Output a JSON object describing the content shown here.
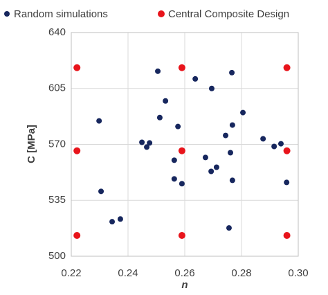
{
  "chart_data": {
    "type": "scatter",
    "xlabel": "n",
    "ylabel": "C [MPa]",
    "xlim": [
      0.22,
      0.3
    ],
    "ylim": [
      500,
      640
    ],
    "xticks": [
      0.22,
      0.24,
      0.26,
      0.28,
      {
        "value": 0.3,
        "label": "0.30"
      }
    ],
    "yticks": [
      500,
      535,
      570,
      605,
      640
    ],
    "grid": true,
    "legend": "top",
    "series": [
      {
        "name": "Random simulations",
        "color": "#17275e",
        "x": [
          0.2505,
          0.2637,
          0.2695,
          0.2766,
          0.2532,
          0.2298,
          0.2512,
          0.2805,
          0.2576,
          0.2768,
          0.2744,
          0.2876,
          0.2449,
          0.2476,
          0.2466,
          0.2915,
          0.2939,
          0.2761,
          0.2563,
          0.2673,
          0.2712,
          0.2693,
          0.2563,
          0.259,
          0.2768,
          0.2959,
          0.2305,
          0.2373,
          0.2344,
          0.2756
        ],
        "values": [
          615.8,
          611.0,
          605.0,
          614.9,
          597.2,
          584.7,
          586.8,
          589.9,
          581.2,
          582.1,
          575.6,
          573.5,
          571.3,
          570.9,
          568.3,
          568.7,
          570.4,
          564.8,
          560.1,
          561.8,
          555.7,
          553.1,
          548.4,
          545.4,
          547.5,
          546.2,
          540.6,
          523.3,
          521.6,
          517.7
        ]
      },
      {
        "name": "Central Composite Design",
        "color": "#e8141b",
        "x": [
          0.222,
          0.222,
          0.222,
          0.259,
          0.259,
          0.259,
          0.296,
          0.296,
          0.296
        ],
        "values": [
          618,
          566,
          513,
          618,
          566,
          513,
          618,
          566,
          513
        ]
      }
    ]
  }
}
